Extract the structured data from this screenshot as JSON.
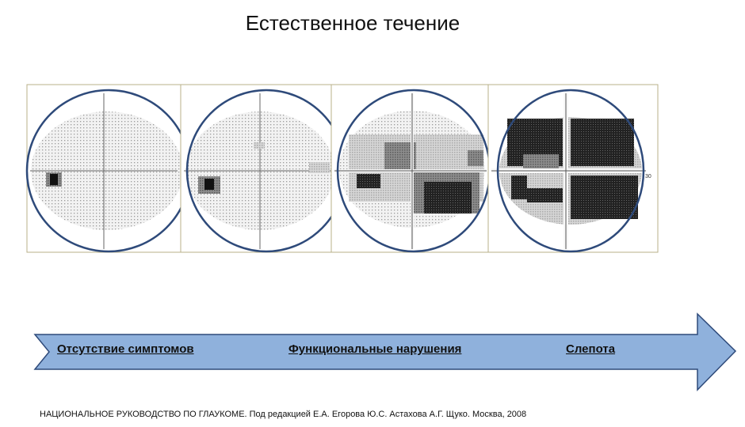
{
  "title": "Естественное течение",
  "stages": [
    "Отсутствие симптомов",
    "Функциональные нарушения",
    "Слепота"
  ],
  "field_scale_label": "30",
  "footer": "НАЦИОНАЛЬНОЕ РУКОВОДСТВО ПО ГЛАУКОМЕ. Под редакцией  Е.А. Егорова Ю.С. Астахова А.Г. Щуко. Москва, 2008",
  "colors": {
    "circle": "#2e4a7a",
    "arrow_fill": "#8fb1dc",
    "arrow_stroke": "#2e4a7a",
    "frame": "#b8b08a"
  },
  "icons": [
    "visual-field-early-icon",
    "visual-field-moderate-icon",
    "visual-field-advanced-icon",
    "visual-field-blind-icon"
  ]
}
